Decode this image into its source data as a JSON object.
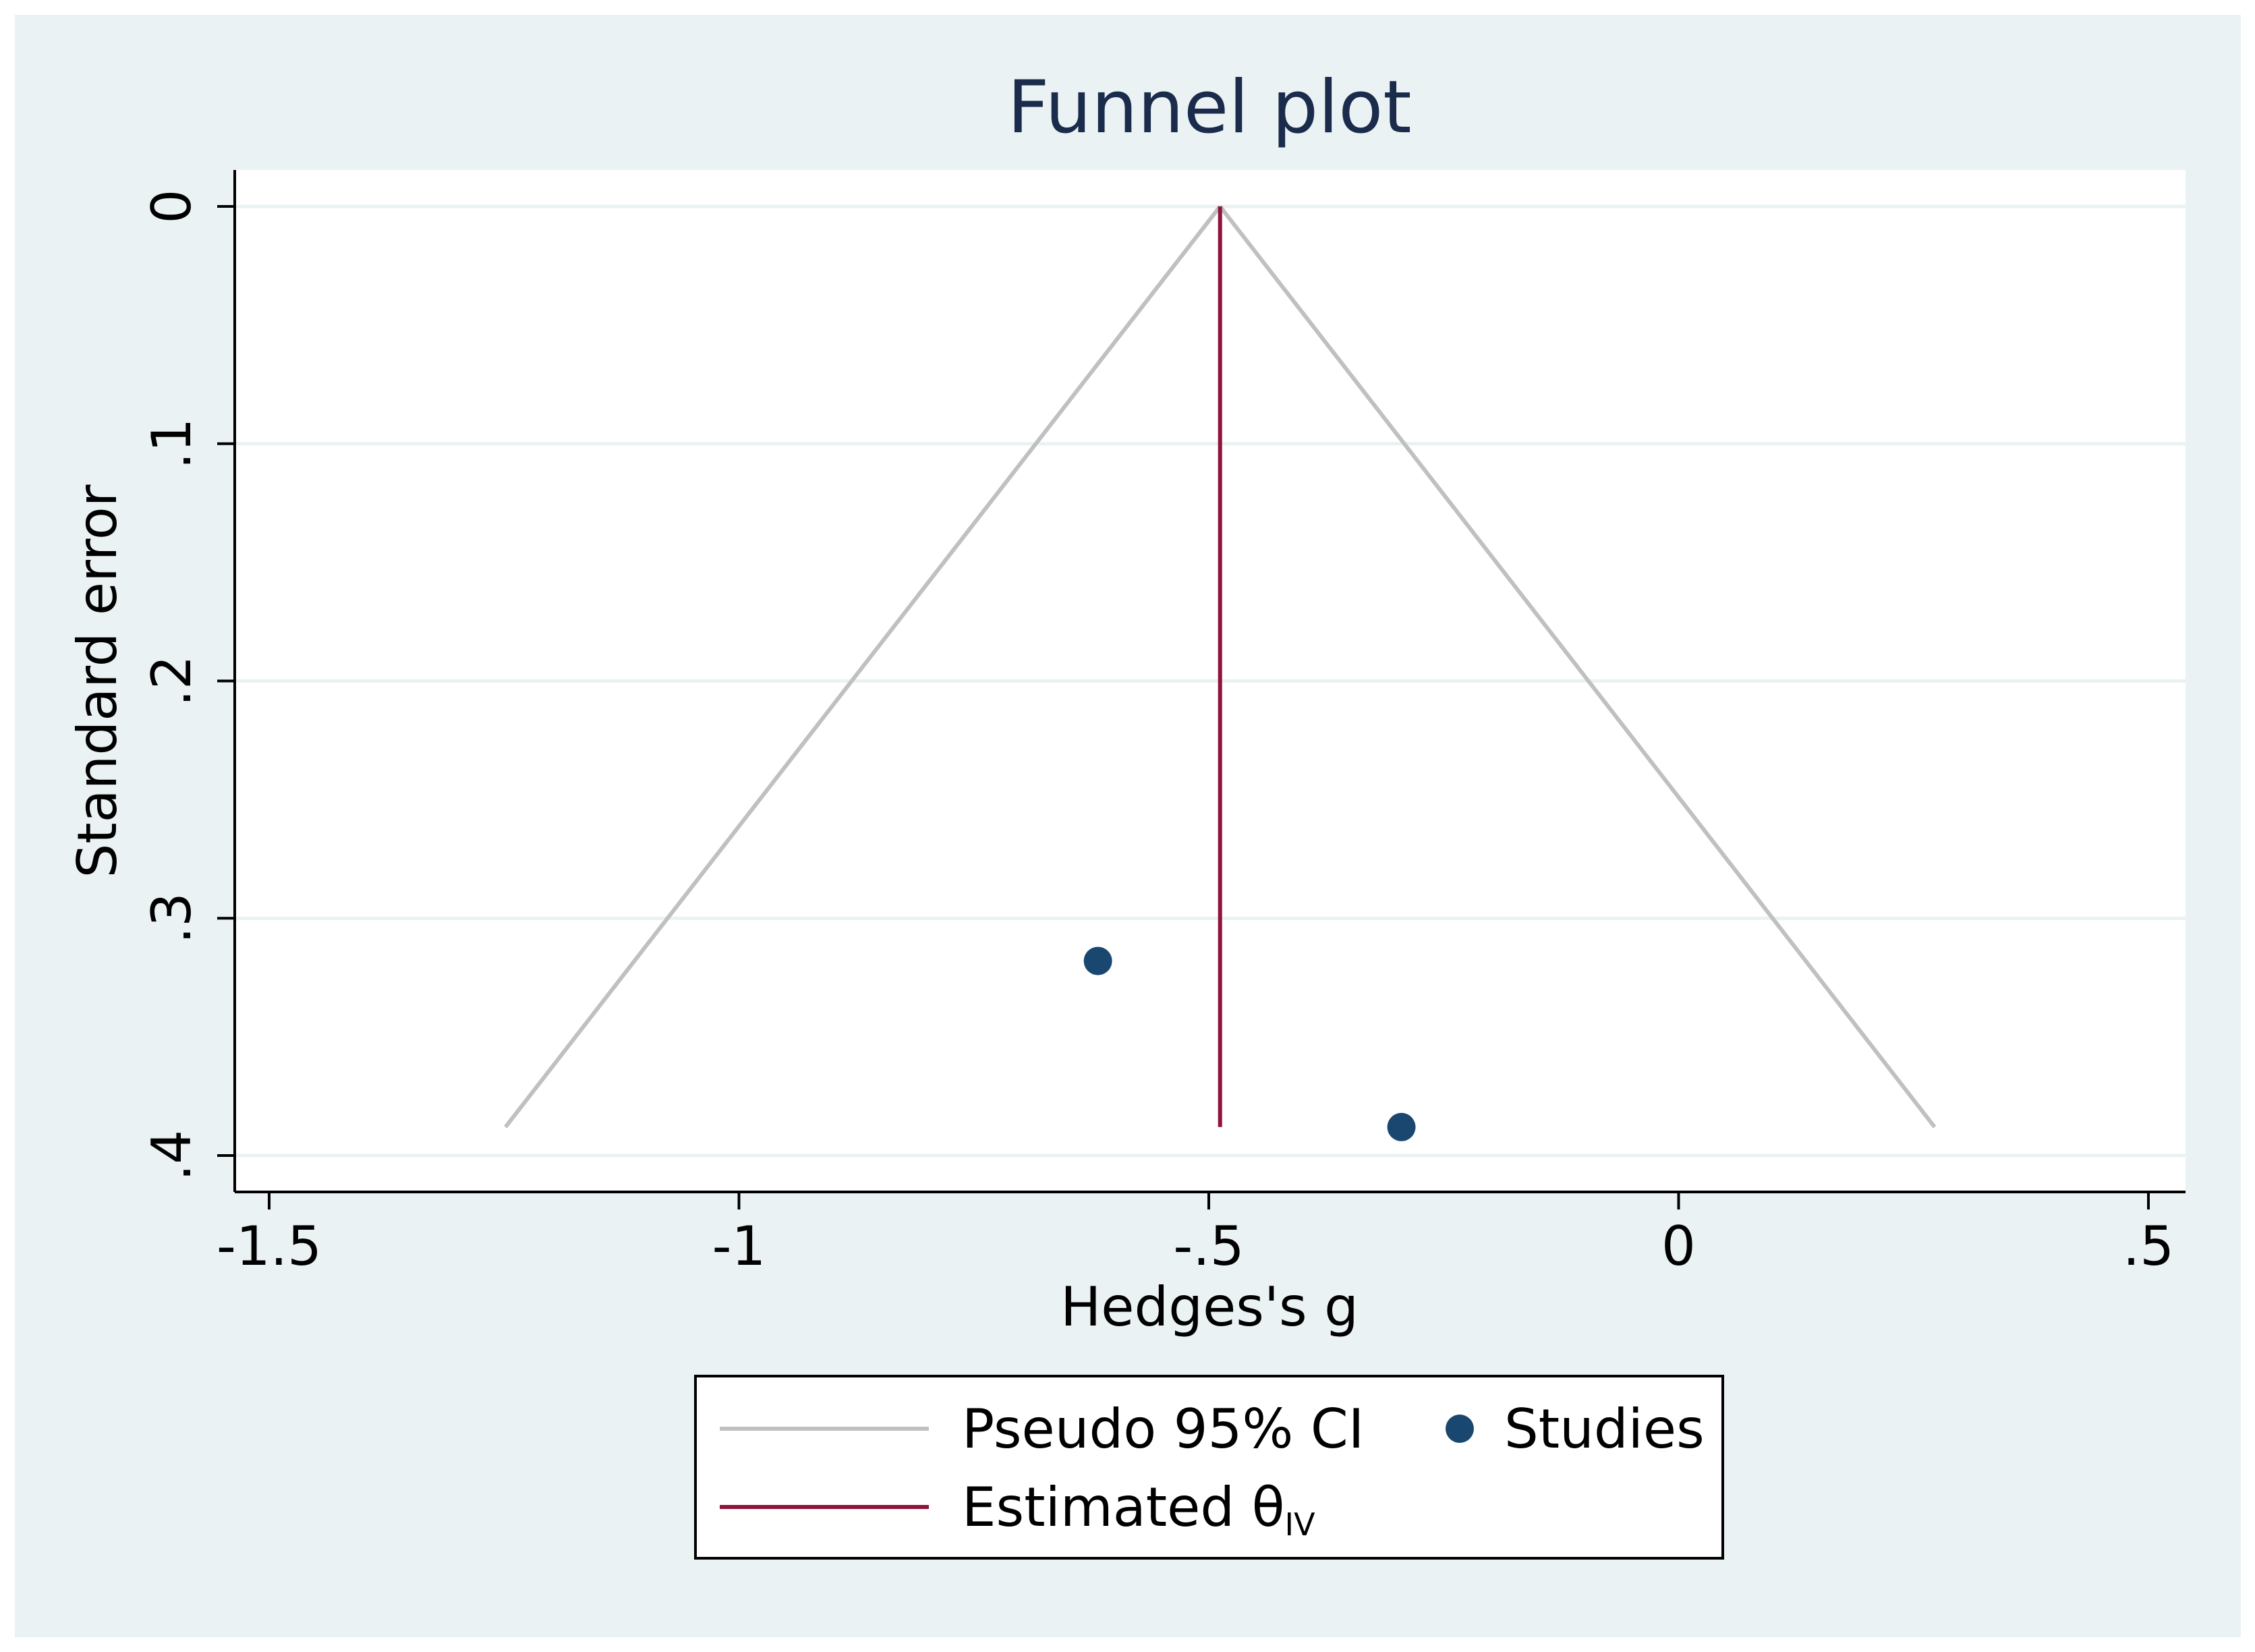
{
  "colors": {
    "outer_bg": "#eaf2f3",
    "plot_bg": "#ffffff",
    "grid": "#eaf2f3",
    "axis": "#000000",
    "title": "#1a2b4c",
    "ci_line": "#c0c0c0",
    "estimate_line": "#90133a",
    "studies": "#1a476f",
    "legend_border": "#000000",
    "legend_bg": "#ffffff"
  },
  "chart_data": {
    "type": "scatter",
    "title": "Funnel plot",
    "xlabel": "Hedges's g",
    "ylabel": "Standard error",
    "xlim": [
      -1.54,
      0.54
    ],
    "ylim": [
      0,
      0.415
    ],
    "y_reversed": true,
    "grid": "horizontal",
    "x_ticks": [
      -1.5,
      -1,
      -0.5,
      0,
      0.5
    ],
    "x_tick_labels": [
      "-1.5",
      "-1",
      "-.5",
      "0",
      ".5"
    ],
    "y_ticks": [
      0,
      0.1,
      0.2,
      0.3,
      0.4
    ],
    "y_tick_labels": [
      "0",
      ".1",
      ".2",
      ".3",
      ".4"
    ],
    "theta_iv": -0.488,
    "se_max": 0.388,
    "studies": {
      "name": "Studies",
      "points": [
        {
          "x": -0.618,
          "y": 0.318
        },
        {
          "x": -0.295,
          "y": 0.388
        }
      ]
    },
    "legend": {
      "placement": "bottom-center",
      "entries": [
        {
          "key": "ci",
          "label": "Pseudo 95% CI"
        },
        {
          "key": "studies",
          "label": "Studies"
        },
        {
          "key": "estimate",
          "label": "Estimated θ",
          "subscript": "IV"
        }
      ]
    }
  }
}
